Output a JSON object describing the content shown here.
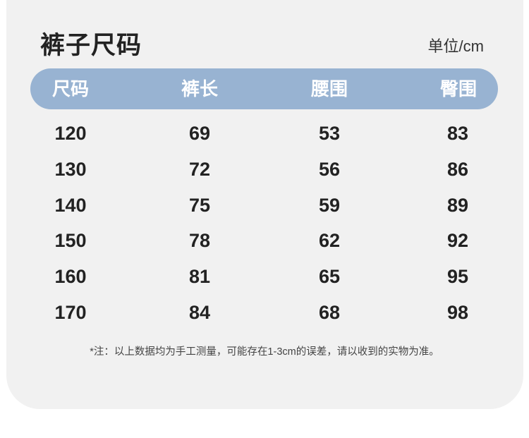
{
  "title": "裤子尺码",
  "unit": "单位/cm",
  "colors": {
    "header_bg": "#98b3d2",
    "card_bg": "#f1f1f1"
  },
  "table": {
    "headers": [
      "尺码",
      "裤长",
      "腰围",
      "臀围"
    ],
    "rows": [
      [
        "120",
        "69",
        "53",
        "83"
      ],
      [
        "130",
        "72",
        "56",
        "86"
      ],
      [
        "140",
        "75",
        "59",
        "89"
      ],
      [
        "150",
        "78",
        "62",
        "92"
      ],
      [
        "160",
        "81",
        "65",
        "95"
      ],
      [
        "170",
        "84",
        "68",
        "98"
      ]
    ]
  },
  "note": "*注：以上数据均为手工测量，可能存在1-3cm的误差，请以收到的实物为准。"
}
